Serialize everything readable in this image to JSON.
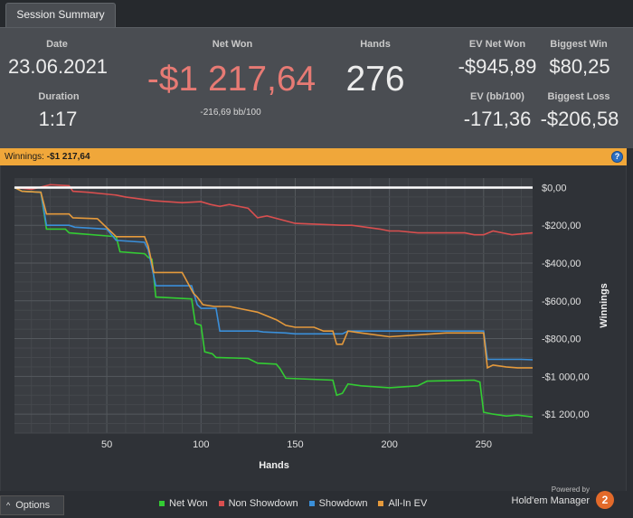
{
  "tabs": {
    "session_summary": "Session Summary"
  },
  "summary": {
    "date_label": "Date",
    "date_value": "23.06.2021",
    "duration_label": "Duration",
    "duration_value": "1:17",
    "net_won_label": "Net Won",
    "net_won_value": "-$1 217,64",
    "net_won_bb": "-216,69 bb/100",
    "hands_label": "Hands",
    "hands_value": "276",
    "ev_net_won_label": "EV Net Won",
    "ev_net_won_value": "-$945,89",
    "ev_bb_label": "EV (bb/100)",
    "ev_bb_value": "-171,36",
    "biggest_win_label": "Biggest Win",
    "biggest_win_value": "$80,25",
    "biggest_loss_label": "Biggest Loss",
    "biggest_loss_value": "-$206,58"
  },
  "winnings_bar": {
    "label": "Winnings:",
    "value": "-$1 217,64",
    "help_icon": "?"
  },
  "chart_data": {
    "type": "line",
    "title": "",
    "xlabel": "Hands",
    "ylabel": "Winnings",
    "xlim": [
      1,
      276
    ],
    "ylim": [
      -1300,
      50
    ],
    "x_ticks": [
      50,
      100,
      150,
      200,
      250
    ],
    "x_tick_labels": [
      "50",
      "100",
      "150",
      "200",
      "250"
    ],
    "y_ticks": [
      0,
      -200,
      -400,
      -600,
      -800,
      -1000,
      -1200
    ],
    "y_tick_labels": [
      "$0,00",
      "-$200,00",
      "-$400,00",
      "-$600,00",
      "-$800,00",
      "-$1 000,00",
      "-$1 200,00"
    ],
    "zero_line_color": "#ffffff",
    "series": [
      {
        "name": "Net Won",
        "color": "#33cc33",
        "points": [
          [
            1,
            0
          ],
          [
            5,
            -20
          ],
          [
            15,
            -25
          ],
          [
            18,
            -220
          ],
          [
            28,
            -220
          ],
          [
            30,
            -240
          ],
          [
            55,
            -260
          ],
          [
            57,
            -340
          ],
          [
            70,
            -350
          ],
          [
            72,
            -370
          ],
          [
            74,
            -380
          ],
          [
            76,
            -580
          ],
          [
            95,
            -590
          ],
          [
            97,
            -720
          ],
          [
            100,
            -730
          ],
          [
            102,
            -870
          ],
          [
            106,
            -880
          ],
          [
            108,
            -900
          ],
          [
            125,
            -905
          ],
          [
            130,
            -930
          ],
          [
            140,
            -935
          ],
          [
            142,
            -960
          ],
          [
            145,
            -1010
          ],
          [
            170,
            -1020
          ],
          [
            172,
            -1100
          ],
          [
            175,
            -1090
          ],
          [
            178,
            -1040
          ],
          [
            185,
            -1050
          ],
          [
            200,
            -1060
          ],
          [
            215,
            -1050
          ],
          [
            220,
            -1025
          ],
          [
            245,
            -1020
          ],
          [
            248,
            -1030
          ],
          [
            250,
            -1190
          ],
          [
            255,
            -1200
          ],
          [
            262,
            -1210
          ],
          [
            268,
            -1205
          ],
          [
            276,
            -1215
          ]
        ]
      },
      {
        "name": "Non Showdown",
        "color": "#d94f4f",
        "points": [
          [
            1,
            0
          ],
          [
            10,
            -10
          ],
          [
            20,
            15
          ],
          [
            30,
            10
          ],
          [
            32,
            -20
          ],
          [
            40,
            -25
          ],
          [
            55,
            -40
          ],
          [
            60,
            -50
          ],
          [
            75,
            -70
          ],
          [
            90,
            -80
          ],
          [
            100,
            -75
          ],
          [
            105,
            -90
          ],
          [
            110,
            -100
          ],
          [
            115,
            -90
          ],
          [
            125,
            -110
          ],
          [
            130,
            -160
          ],
          [
            135,
            -150
          ],
          [
            150,
            -190
          ],
          [
            175,
            -200
          ],
          [
            180,
            -200
          ],
          [
            195,
            -220
          ],
          [
            200,
            -230
          ],
          [
            205,
            -230
          ],
          [
            215,
            -240
          ],
          [
            240,
            -240
          ],
          [
            245,
            -250
          ],
          [
            250,
            -250
          ],
          [
            255,
            -230
          ],
          [
            260,
            -240
          ],
          [
            265,
            -250
          ],
          [
            276,
            -240
          ]
        ]
      },
      {
        "name": "Showdown",
        "color": "#3a8fd9",
        "points": [
          [
            1,
            0
          ],
          [
            5,
            -20
          ],
          [
            15,
            -25
          ],
          [
            18,
            -200
          ],
          [
            30,
            -200
          ],
          [
            33,
            -210
          ],
          [
            50,
            -220
          ],
          [
            55,
            -280
          ],
          [
            70,
            -290
          ],
          [
            72,
            -330
          ],
          [
            76,
            -520
          ],
          [
            95,
            -520
          ],
          [
            98,
            -620
          ],
          [
            100,
            -640
          ],
          [
            108,
            -640
          ],
          [
            110,
            -760
          ],
          [
            130,
            -760
          ],
          [
            133,
            -765
          ],
          [
            145,
            -770
          ],
          [
            150,
            -775
          ],
          [
            175,
            -775
          ],
          [
            178,
            -760
          ],
          [
            200,
            -760
          ],
          [
            240,
            -760
          ],
          [
            250,
            -760
          ],
          [
            252,
            -910
          ],
          [
            270,
            -910
          ],
          [
            276,
            -912
          ]
        ]
      },
      {
        "name": "All-In EV",
        "color": "#e59a3c",
        "points": [
          [
            1,
            0
          ],
          [
            5,
            -20
          ],
          [
            15,
            -25
          ],
          [
            18,
            -140
          ],
          [
            30,
            -140
          ],
          [
            32,
            -160
          ],
          [
            45,
            -165
          ],
          [
            55,
            -260
          ],
          [
            70,
            -260
          ],
          [
            72,
            -310
          ],
          [
            75,
            -450
          ],
          [
            90,
            -450
          ],
          [
            96,
            -560
          ],
          [
            98,
            -580
          ],
          [
            101,
            -620
          ],
          [
            107,
            -630
          ],
          [
            115,
            -630
          ],
          [
            120,
            -640
          ],
          [
            130,
            -660
          ],
          [
            140,
            -700
          ],
          [
            145,
            -730
          ],
          [
            150,
            -740
          ],
          [
            160,
            -740
          ],
          [
            165,
            -760
          ],
          [
            170,
            -760
          ],
          [
            172,
            -830
          ],
          [
            175,
            -830
          ],
          [
            178,
            -760
          ],
          [
            185,
            -770
          ],
          [
            200,
            -790
          ],
          [
            215,
            -780
          ],
          [
            230,
            -770
          ],
          [
            245,
            -770
          ],
          [
            250,
            -770
          ],
          [
            252,
            -955
          ],
          [
            255,
            -940
          ],
          [
            262,
            -950
          ],
          [
            268,
            -955
          ],
          [
            276,
            -955
          ]
        ]
      }
    ]
  },
  "bottom": {
    "options_label": "Options",
    "options_icon": "^",
    "legend": [
      {
        "name": "Net Won",
        "color": "#33cc33"
      },
      {
        "name": "Non Showdown",
        "color": "#d94f4f"
      },
      {
        "name": "Showdown",
        "color": "#3a8fd9"
      },
      {
        "name": "All-In EV",
        "color": "#e59a3c"
      }
    ],
    "powered_by": "Powered by",
    "brand_name": "Hold'em Manager",
    "brand_badge": "2"
  }
}
